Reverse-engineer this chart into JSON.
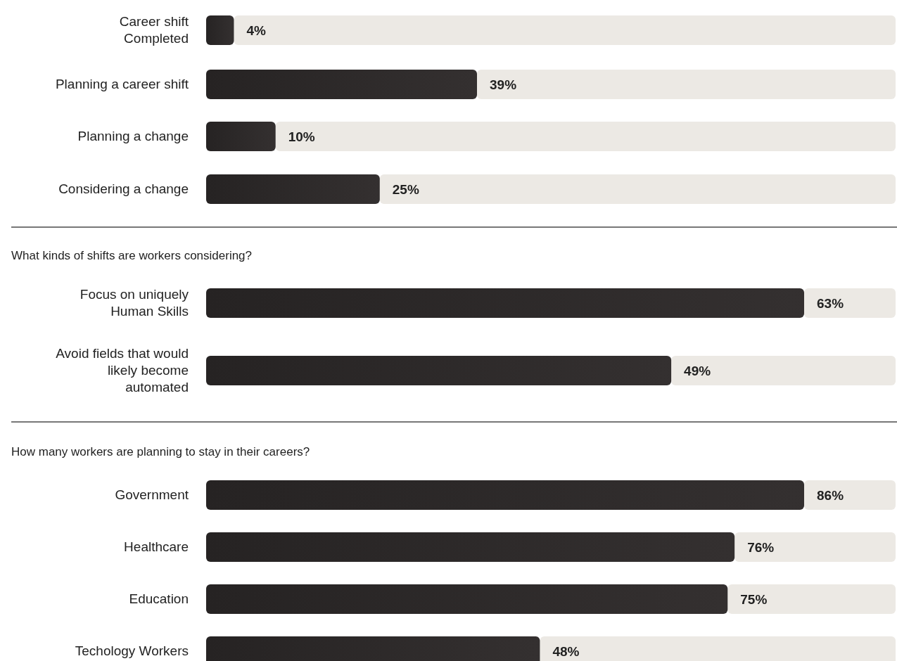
{
  "chart_data": [
    {
      "type": "bar",
      "orientation": "horizontal",
      "categories": [
        "Career shift\nCompleted",
        "Planning a career shift",
        "Planning a change",
        "Considering a change"
      ],
      "values": [
        4,
        39,
        10,
        25
      ],
      "value_labels": [
        "4%",
        "39%",
        "10%",
        "25%"
      ],
      "color": "#262323",
      "tick_labels": "y"
    },
    {
      "type": "bar",
      "orientation": "horizontal",
      "title": "What kinds of shifts are workers considering?",
      "categories": [
        "Focus on uniquely\nHuman Skills",
        "Avoid fields that would\nlikely become\nautomated"
      ],
      "values": [
        63,
        49
      ],
      "value_labels": [
        "63%",
        "49%"
      ],
      "color": "#262323",
      "tick_labels": "y"
    },
    {
      "type": "bar",
      "orientation": "horizontal",
      "title": "How many workers are planning to stay in their careers?",
      "categories": [
        "Government",
        "Healthcare",
        "Education",
        "Techology Workers"
      ],
      "values": [
        86,
        76,
        75,
        48
      ],
      "value_labels": [
        "86%",
        "76%",
        "75%",
        "48%"
      ],
      "color": "#262323",
      "tick_labels": "y"
    }
  ]
}
